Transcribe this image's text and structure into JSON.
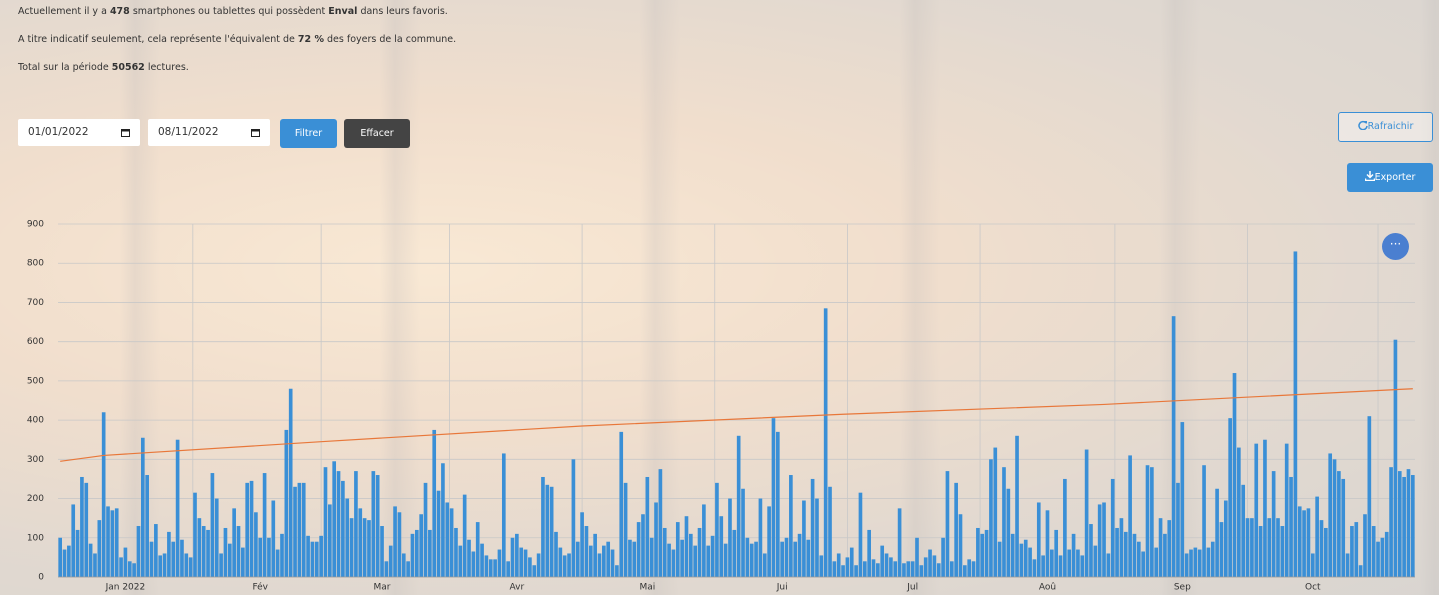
{
  "info": {
    "line1": {
      "pre": "Actuellement il y a",
      "count": 478,
      "mid": "smartphones ou tablettes qui possèdent",
      "name": "Enval",
      "post": "dans leurs favoris."
    },
    "line2": {
      "pre": "A titre indicatif seulement, cela représente l'équivalent de",
      "percent": "72 %",
      "post": "des foyers de la commune."
    },
    "line3": {
      "pre": "Total sur la période",
      "total": 50562,
      "post": "lectures."
    }
  },
  "filters": {
    "start_date": "01/01/2022",
    "end_date": "08/11/2022",
    "filter_button": "Filtrer",
    "clear_button": "Effacer"
  },
  "actions": {
    "refresh_button": "Rafraichir",
    "export_button": "Exporter"
  },
  "chart_data": {
    "type": "bar",
    "color": "#3a8fd6",
    "categories": [
      null,
      null,
      null,
      null,
      null,
      null,
      null,
      null,
      null,
      null,
      null,
      null,
      null,
      null,
      null,
      "Jan 2022",
      null,
      null,
      null,
      null,
      null,
      null,
      null,
      null,
      null,
      null,
      null,
      null,
      null,
      null,
      null,
      null,
      null,
      null,
      null,
      null,
      null,
      null,
      null,
      null,
      null,
      null,
      null,
      null,
      null,
      null,
      "Fév",
      null,
      null,
      null,
      null,
      null,
      null,
      null,
      null,
      null,
      null,
      null,
      null,
      null,
      null,
      null,
      null,
      null,
      null,
      null,
      null,
      null,
      null,
      null,
      null,
      null,
      null,
      null,
      "Mar",
      null,
      null,
      null,
      null,
      null,
      null,
      null,
      null,
      null,
      null,
      null,
      null,
      null,
      null,
      null,
      null,
      null,
      null,
      null,
      null,
      null,
      null,
      null,
      null,
      null,
      null,
      null,
      null,
      null,
      null,
      "Avr",
      null,
      null,
      null,
      null,
      null,
      null,
      null,
      null,
      null,
      null,
      null,
      null,
      null,
      null,
      null,
      null,
      null,
      null,
      null,
      null,
      null,
      null,
      null,
      null,
      null,
      null,
      null,
      null,
      null,
      "Mai",
      null,
      null,
      null,
      null,
      null,
      null,
      null,
      null,
      null,
      null,
      null,
      null,
      null,
      null,
      null,
      null,
      null,
      null,
      null,
      null,
      null,
      null,
      null,
      null,
      null,
      null,
      null,
      null,
      null,
      null,
      "Jui",
      null,
      null,
      null,
      null,
      null,
      null,
      null,
      null,
      null,
      null,
      null,
      null,
      null,
      null,
      null,
      null,
      null,
      null,
      null,
      null,
      null,
      null,
      null,
      null,
      null,
      null,
      null,
      null,
      null,
      "Jul",
      null,
      null,
      null,
      null,
      null,
      null,
      null,
      null,
      null,
      null,
      null,
      null,
      null,
      null,
      null,
      null,
      null,
      null,
      null,
      null,
      null,
      null,
      null,
      null,
      null,
      null,
      null,
      null,
      null,
      null,
      "Aoû",
      null,
      null,
      null,
      null,
      null,
      null,
      null,
      null,
      null,
      null,
      null,
      null,
      null,
      null,
      null,
      null,
      null,
      null,
      null,
      null,
      null,
      null,
      null,
      null,
      null,
      null,
      null,
      null,
      null,
      null,
      "Sep",
      null,
      null,
      null,
      null,
      null,
      null,
      null,
      null,
      null,
      null,
      null,
      null,
      null,
      null,
      null,
      null,
      null,
      null,
      null,
      null,
      null,
      null,
      null,
      null,
      null,
      null,
      null,
      null,
      null,
      "Oct",
      null,
      null,
      null,
      null,
      null,
      null,
      null,
      null,
      null,
      null,
      null,
      null,
      null,
      null,
      null,
      null,
      null,
      null,
      null,
      null,
      null,
      null,
      null
    ],
    "values": [
      100,
      70,
      80,
      185,
      120,
      255,
      240,
      85,
      60,
      145,
      420,
      180,
      170,
      175,
      50,
      75,
      40,
      35,
      130,
      355,
      260,
      90,
      135,
      55,
      60,
      115,
      90,
      350,
      95,
      60,
      50,
      215,
      150,
      130,
      120,
      265,
      200,
      60,
      125,
      85,
      175,
      130,
      75,
      240,
      245,
      165,
      100,
      265,
      100,
      195,
      70,
      110,
      375,
      480,
      230,
      240,
      240,
      105,
      90,
      90,
      105,
      280,
      185,
      295,
      270,
      245,
      200,
      150,
      270,
      175,
      150,
      145,
      270,
      260,
      130,
      40,
      80,
      180,
      165,
      60,
      40,
      110,
      120,
      160,
      240,
      120,
      375,
      220,
      290,
      190,
      175,
      125,
      80,
      210,
      95,
      65,
      140,
      85,
      55,
      45,
      45,
      70,
      315,
      40,
      100,
      110,
      75,
      70,
      50,
      30,
      60,
      255,
      235,
      230,
      115,
      75,
      55,
      60,
      300,
      90,
      165,
      130,
      80,
      110,
      60,
      80,
      90,
      70,
      30,
      370,
      240,
      95,
      90,
      140,
      160,
      255,
      100,
      190,
      275,
      125,
      85,
      70,
      140,
      95,
      155,
      110,
      80,
      125,
      185,
      80,
      105,
      240,
      155,
      85,
      200,
      120,
      360,
      225,
      100,
      85,
      90,
      200,
      60,
      180,
      405,
      370,
      90,
      100,
      260,
      90,
      110,
      195,
      95,
      250,
      200,
      55,
      685,
      230,
      40,
      60,
      30,
      50,
      75,
      30,
      215,
      40,
      120,
      45,
      35,
      80,
      60,
      50,
      40,
      175,
      35,
      40,
      40,
      100,
      30,
      50,
      70,
      55,
      35,
      100,
      270,
      40,
      240,
      160,
      30,
      45,
      40,
      125,
      110,
      120,
      300,
      330,
      90,
      280,
      225,
      110,
      360,
      85,
      95,
      75,
      45,
      190,
      55,
      170,
      70,
      120,
      55,
      250,
      70,
      110,
      70,
      55,
      325,
      135,
      80,
      185,
      190,
      60,
      250,
      125,
      150,
      115,
      310,
      110,
      90,
      65,
      285,
      280,
      75,
      150,
      110,
      145,
      665,
      240,
      395,
      60,
      70,
      75,
      70,
      285,
      75,
      90,
      225,
      140,
      195,
      405,
      520,
      330,
      235,
      150,
      150,
      340,
      130,
      350,
      150,
      270,
      150,
      130,
      340,
      255,
      830,
      180,
      170,
      175,
      60,
      205,
      145,
      125,
      315,
      300,
      270,
      250,
      60,
      130,
      140,
      30,
      160,
      410,
      130,
      90,
      100,
      115,
      280,
      605,
      270,
      255,
      275,
      260
    ],
    "trend_line": {
      "color": "#e8773a",
      "x": [
        0,
        10,
        60,
        120,
        180,
        240,
        311
      ],
      "values": [
        295,
        310,
        345,
        385,
        415,
        440,
        480
      ]
    },
    "ylim": [
      0,
      900
    ],
    "yticks": [
      0,
      100,
      200,
      300,
      400,
      500,
      600,
      700,
      800,
      900
    ],
    "grid": true
  }
}
